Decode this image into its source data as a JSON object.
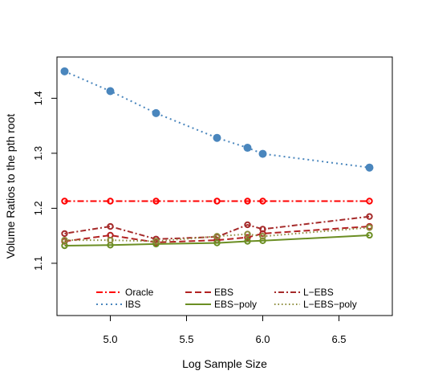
{
  "chart_data": {
    "type": "line",
    "title": "",
    "xlabel": "Log Sample Size",
    "ylabel": "Volume Ratios to the pth root",
    "xlim": [
      4.65,
      6.85
    ],
    "ylim": [
      1.005,
      1.475
    ],
    "x_ticks": [
      5.0,
      5.5,
      6.0,
      6.5
    ],
    "x_tick_labels": [
      "5.0",
      "5.5",
      "6.0",
      "6.5"
    ],
    "y_ticks": [
      1.1,
      1.2,
      1.3,
      1.4
    ],
    "y_tick_labels": [
      "1.1",
      "1.2",
      "1.3",
      "1.4"
    ],
    "grid": false,
    "legend_position": "bottom inside",
    "x": [
      4.7,
      5.0,
      5.3,
      5.7,
      5.9,
      6.0,
      6.7
    ],
    "series": [
      {
        "name": "Oracle",
        "color": "#ff0000",
        "dash": "dashdot",
        "values": [
          1.213,
          1.213,
          1.213,
          1.213,
          1.213,
          1.213,
          1.213
        ]
      },
      {
        "name": "IBS",
        "color": "#4a86bd",
        "dash": "dotted",
        "values": [
          1.449,
          1.413,
          1.373,
          1.328,
          1.31,
          1.299,
          1.274
        ]
      },
      {
        "name": "EBS",
        "color": "#b22222",
        "dash": "dashed",
        "values": [
          1.14,
          1.151,
          1.138,
          1.142,
          1.147,
          1.154,
          1.167
        ]
      },
      {
        "name": "EBS−poly",
        "color": "#6b8e23",
        "dash": "solid",
        "values": [
          1.132,
          1.133,
          1.135,
          1.137,
          1.14,
          1.141,
          1.151
        ]
      },
      {
        "name": "L−EBS",
        "color": "#a52a2a",
        "dash": "dotdash",
        "values": [
          1.154,
          1.167,
          1.144,
          1.148,
          1.17,
          1.162,
          1.185
        ]
      },
      {
        "name": "L−EBS−poly",
        "color": "#8b8b3a",
        "dash": "finedot",
        "values": [
          1.142,
          1.142,
          1.14,
          1.149,
          1.153,
          1.149,
          1.165
        ]
      }
    ]
  }
}
